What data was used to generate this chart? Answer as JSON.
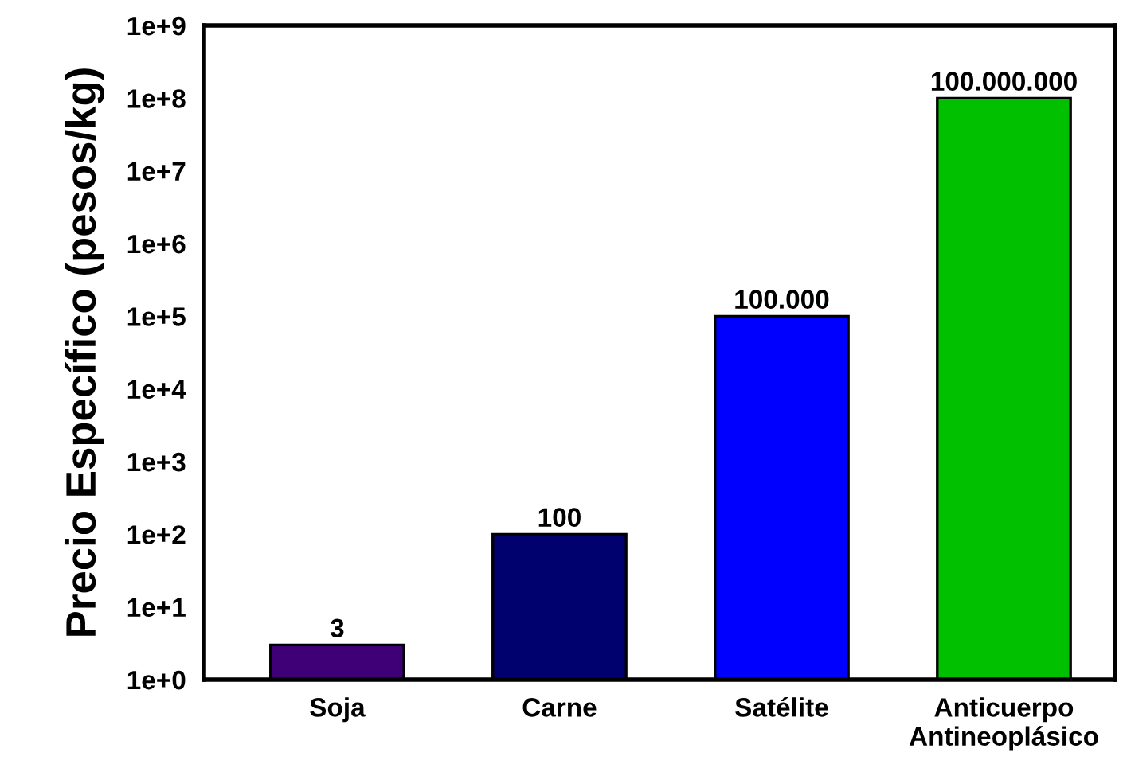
{
  "chart_data": {
    "type": "bar",
    "ylabel": "Precio Específico (pesos/kg)",
    "categories": [
      "Soja",
      "Carne",
      "Satélite",
      "Anticuerpo\nAntineoplásico"
    ],
    "values": [
      3,
      100,
      100000,
      100000000
    ],
    "colors": [
      "#3f0077",
      "#00006e",
      "#0000ff",
      "#00c000"
    ],
    "value_labels": [
      "3",
      "100",
      "100.000",
      "100.000.000"
    ],
    "log": true,
    "ylim": [
      1,
      1000000000
    ],
    "yticks": [
      {
        "value": 1,
        "label": "1e+0"
      },
      {
        "value": 10,
        "label": "1e+1"
      },
      {
        "value": 100,
        "label": "1e+2"
      },
      {
        "value": 1000,
        "label": "1e+3"
      },
      {
        "value": 10000,
        "label": "1e+4"
      },
      {
        "value": 100000,
        "label": "1e+5"
      },
      {
        "value": 1000000,
        "label": "1e+6"
      },
      {
        "value": 10000000,
        "label": "1e+7"
      },
      {
        "value": 100000000,
        "label": "1e+8"
      },
      {
        "value": 1000000000,
        "label": "1e+9"
      }
    ],
    "grid": false,
    "legend": false
  }
}
